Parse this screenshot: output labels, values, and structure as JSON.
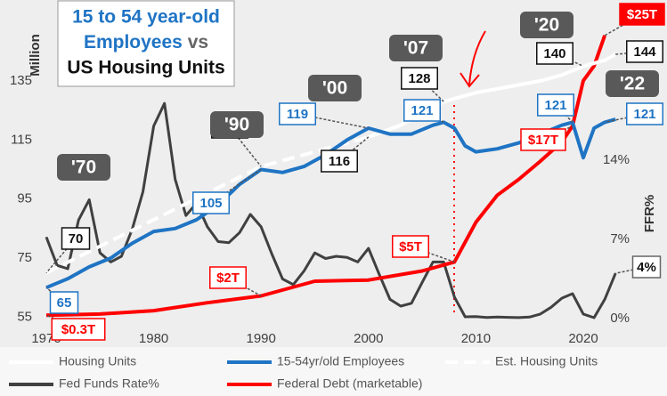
{
  "chart_data": {
    "type": "line",
    "title": [
      "15 to 54 year-old",
      "Employees",
      "vs",
      "US Housing Units"
    ],
    "y_label": "Million",
    "y2_label": "FFR%",
    "annotations": [
      "'70",
      "'90",
      "'00",
      "'07",
      "'20",
      "'22"
    ],
    "xlim": [
      1970,
      2024.56
    ],
    "xticks": [
      1970,
      1980,
      1990,
      2000,
      2010,
      2020
    ],
    "ylim": [
      54.5,
      160
    ],
    "yticks": [
      55,
      75,
      95,
      115,
      135
    ],
    "y2lim": [
      0,
      27.5
    ],
    "y2ticks": [
      {
        "value": 0,
        "label": "0%"
      },
      {
        "value": 7,
        "label": "7%"
      },
      {
        "value": 14,
        "label": "14%"
      }
    ],
    "y3lim": [
      0,
      27.5
    ],
    "grid": false,
    "legend": "bottom",
    "series": [
      {
        "name": "Housing Units",
        "color": "#ffffff",
        "dash": false,
        "x": [
          2000,
          2003,
          2005,
          2007,
          2010,
          2013,
          2016,
          2018,
          2020,
          2022,
          2023
        ],
        "values": [
          116,
          120,
          124,
          128,
          131,
          133,
          135,
          137,
          140,
          142,
          144
        ],
        "value_labels": [
          null,
          null,
          null,
          "128",
          null,
          null,
          null,
          null,
          "140",
          null,
          "144"
        ]
      },
      {
        "name": "15-54yr/old Employees",
        "color": "#1f74c4",
        "dash": false,
        "x": [
          1970,
          1972,
          1974,
          1976,
          1978,
          1980,
          1982,
          1984,
          1986,
          1988,
          1990,
          1992,
          1994,
          1996,
          1998,
          2000,
          2002,
          2004,
          2006,
          2007,
          2008,
          2009,
          2010,
          2012,
          2014,
          2016,
          2018,
          2019,
          2020,
          2021,
          2022,
          2023
        ],
        "values": [
          65,
          68,
          72,
          75,
          80,
          84,
          85,
          88,
          93,
          100,
          105,
          104,
          106,
          110,
          115,
          119,
          117,
          117,
          120,
          121,
          119,
          113,
          111,
          112,
          114,
          117,
          120,
          121,
          109,
          119,
          121,
          122
        ],
        "value_labels": [
          "65",
          null,
          null,
          null,
          null,
          null,
          null,
          null,
          null,
          null,
          "105",
          null,
          null,
          null,
          null,
          "119",
          null,
          null,
          null,
          "121",
          null,
          null,
          null,
          null,
          null,
          null,
          null,
          "121",
          null,
          null,
          "121",
          null
        ]
      },
      {
        "name": "Est. Housing Units",
        "color": "#ffffff",
        "dash": true,
        "x": [
          1970,
          1975,
          1980,
          1985,
          1990,
          1995,
          2000
        ],
        "values": [
          70,
          79,
          88,
          97,
          106,
          111,
          116
        ],
        "value_labels": [
          "70",
          null,
          null,
          null,
          "106",
          null,
          "116"
        ]
      },
      {
        "name": "Fed Funds Rate%",
        "color": "#404040",
        "dash": false,
        "axis": "y2",
        "x": [
          1970,
          1971,
          1972,
          1973,
          1974,
          1975,
          1976,
          1977,
          1978,
          1979,
          1980,
          1981,
          1982,
          1983,
          1984,
          1985,
          1986,
          1987,
          1988,
          1989,
          1990,
          1991,
          1992,
          1993,
          1994,
          1995,
          1996,
          1997,
          1998,
          1999,
          2000,
          2001,
          2002,
          2003,
          2004,
          2005,
          2006,
          2007,
          2008,
          2009,
          2010,
          2011,
          2012,
          2013,
          2014,
          2015,
          2016,
          2017,
          2018,
          2019,
          2020,
          2021,
          2022,
          2023
        ],
        "values": [
          7.2,
          4.7,
          4.4,
          8.7,
          10.5,
          5.8,
          5.0,
          5.5,
          7.9,
          11.2,
          17,
          19,
          12.3,
          9.1,
          10.2,
          8.1,
          6.8,
          6.7,
          7.6,
          9.2,
          8.1,
          5.7,
          3.5,
          3.0,
          4.2,
          5.8,
          5.3,
          5.5,
          5.4,
          5.0,
          6.2,
          3.9,
          1.7,
          1.1,
          1.35,
          3.2,
          5.0,
          5.0,
          1.9,
          0.16,
          0.18,
          0.1,
          0.14,
          0.11,
          0.09,
          0.13,
          0.4,
          1.0,
          1.8,
          2.2,
          0.4,
          0.08,
          1.7,
          4
        ],
        "value_labels": [
          null,
          null,
          null,
          null,
          null,
          null,
          null,
          null,
          null,
          null,
          null,
          null,
          null,
          null,
          null,
          null,
          null,
          null,
          null,
          null,
          null,
          null,
          null,
          null,
          null,
          null,
          null,
          null,
          null,
          null,
          null,
          null,
          null,
          null,
          null,
          null,
          null,
          null,
          null,
          null,
          null,
          null,
          null,
          null,
          null,
          null,
          null,
          null,
          null,
          null,
          null,
          null,
          null,
          "4%"
        ]
      },
      {
        "name": "Federal Debt (marketable)",
        "color": "#ff0000",
        "dash": false,
        "axis": "y3",
        "x": [
          1970,
          1975,
          1980,
          1985,
          1990,
          1995,
          2000,
          2005,
          2008,
          2010,
          2012,
          2014,
          2016,
          2018,
          2019,
          2020,
          2021,
          2022
        ],
        "values": [
          0.3,
          0.4,
          0.7,
          1.4,
          2,
          3.3,
          3.4,
          4.2,
          5,
          8.5,
          10.9,
          12.3,
          13.9,
          15.6,
          17,
          21,
          22.3,
          25
        ],
        "value_labels": [
          "$0.3T",
          null,
          null,
          null,
          "$2T",
          null,
          null,
          null,
          "$5T",
          null,
          null,
          null,
          null,
          null,
          "$17T",
          null,
          null,
          "$25T"
        ]
      }
    ]
  }
}
